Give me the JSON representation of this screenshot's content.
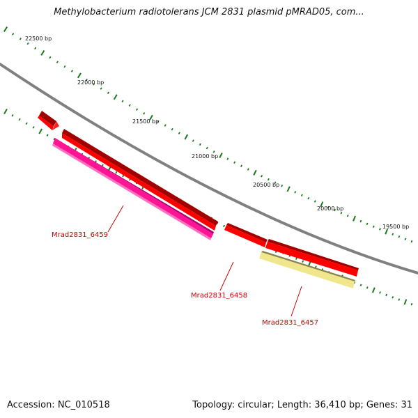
{
  "header": {
    "title": "Methylobacterium radiotolerans JCM 2831 plasmid pMRAD05, com..."
  },
  "footer": {
    "accession": "Accession: NC_010518",
    "summary": "Topology: circular; Length: 36,410 bp; Genes: 31"
  },
  "map": {
    "backbone_color": "#808080",
    "tick_color": "#1a7a1a",
    "scale_labels": [
      {
        "label": "22500 bp"
      },
      {
        "label": "22000 bp"
      },
      {
        "label": "21500 bp"
      },
      {
        "label": "21000 bp"
      },
      {
        "label": "20500 bp"
      },
      {
        "label": "20000 bp"
      },
      {
        "label": "19500 bp"
      }
    ],
    "features": [
      {
        "name": "",
        "type": "CDS",
        "color": "#ff0000"
      },
      {
        "name": "",
        "type": "CDS",
        "color": "#ff0000"
      },
      {
        "name": "",
        "type": "CDS",
        "color": "#ff0000"
      },
      {
        "name": "",
        "type": "CDS",
        "color": "#ff0000"
      },
      {
        "name": "Mrad2831_6459",
        "type": "gene",
        "color": "#ff1493"
      },
      {
        "name": "Mrad2831_6457",
        "type": "gene",
        "color": "#f0e68c"
      }
    ],
    "gene_labels": [
      {
        "label": "Mrad2831_6459",
        "color": "#cc0000"
      },
      {
        "label": "Mrad2831_6458",
        "color": "#cc0000"
      },
      {
        "label": "Mrad2831_6457",
        "color": "#cc0000"
      }
    ]
  }
}
